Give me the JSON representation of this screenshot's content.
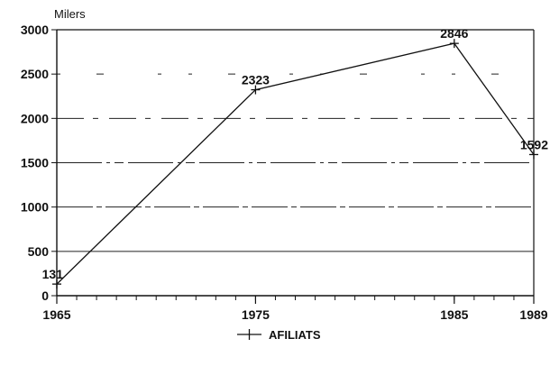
{
  "chart_data": {
    "type": "line",
    "ylabel": "Milers",
    "x": [
      1965,
      1975,
      1985,
      1989
    ],
    "x_ticks": [
      "1965",
      "1975",
      "1985",
      "1989"
    ],
    "xlim": [
      1965,
      1989
    ],
    "ylim": [
      0,
      3000
    ],
    "y_ticks": [
      "0",
      "500",
      "1000",
      "1500",
      "2000",
      "2500",
      "3000"
    ],
    "series": [
      {
        "name": "AFILIATS",
        "values": [
          131,
          2323,
          2846,
          1592
        ],
        "labels": [
          "131",
          "2323",
          "2846",
          "1592"
        ]
      }
    ],
    "grid": true,
    "legend_position": "bottom-center",
    "colors": {
      "line": "#111111",
      "grid": "#222222"
    }
  }
}
